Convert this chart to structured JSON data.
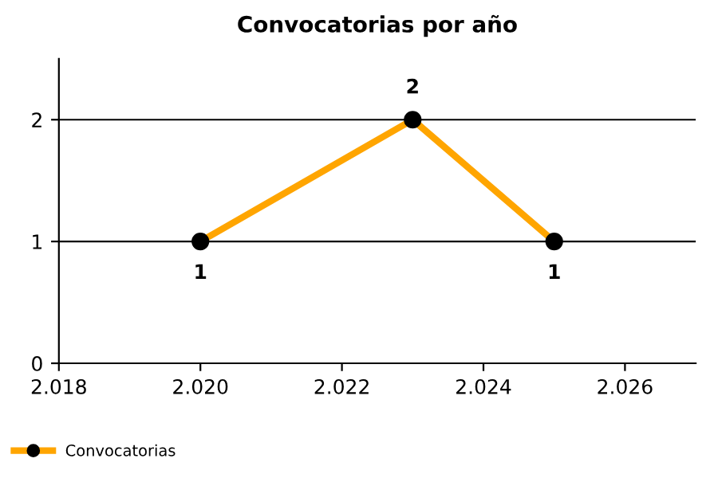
{
  "chart_data": {
    "type": "line",
    "title": "Convocatorias por año",
    "x": [
      2020,
      2023,
      2025
    ],
    "series": [
      {
        "name": "Convocatorias",
        "color": "#ffa500",
        "values": [
          1,
          2,
          1
        ]
      }
    ],
    "xlim": [
      2018,
      2027
    ],
    "xticks": [
      {
        "value": 2018,
        "label": "2.018"
      },
      {
        "value": 2020,
        "label": "2.020"
      },
      {
        "value": 2022,
        "label": "2.022"
      },
      {
        "value": 2024,
        "label": "2.024"
      },
      {
        "value": 2026,
        "label": "2.026"
      }
    ],
    "ylim": [
      0,
      2.5
    ],
    "yticks": [
      0,
      1,
      2
    ],
    "grid": "y",
    "legend": "bottom left",
    "marker": "circle",
    "line_style": "solid",
    "data_labels": true
  }
}
